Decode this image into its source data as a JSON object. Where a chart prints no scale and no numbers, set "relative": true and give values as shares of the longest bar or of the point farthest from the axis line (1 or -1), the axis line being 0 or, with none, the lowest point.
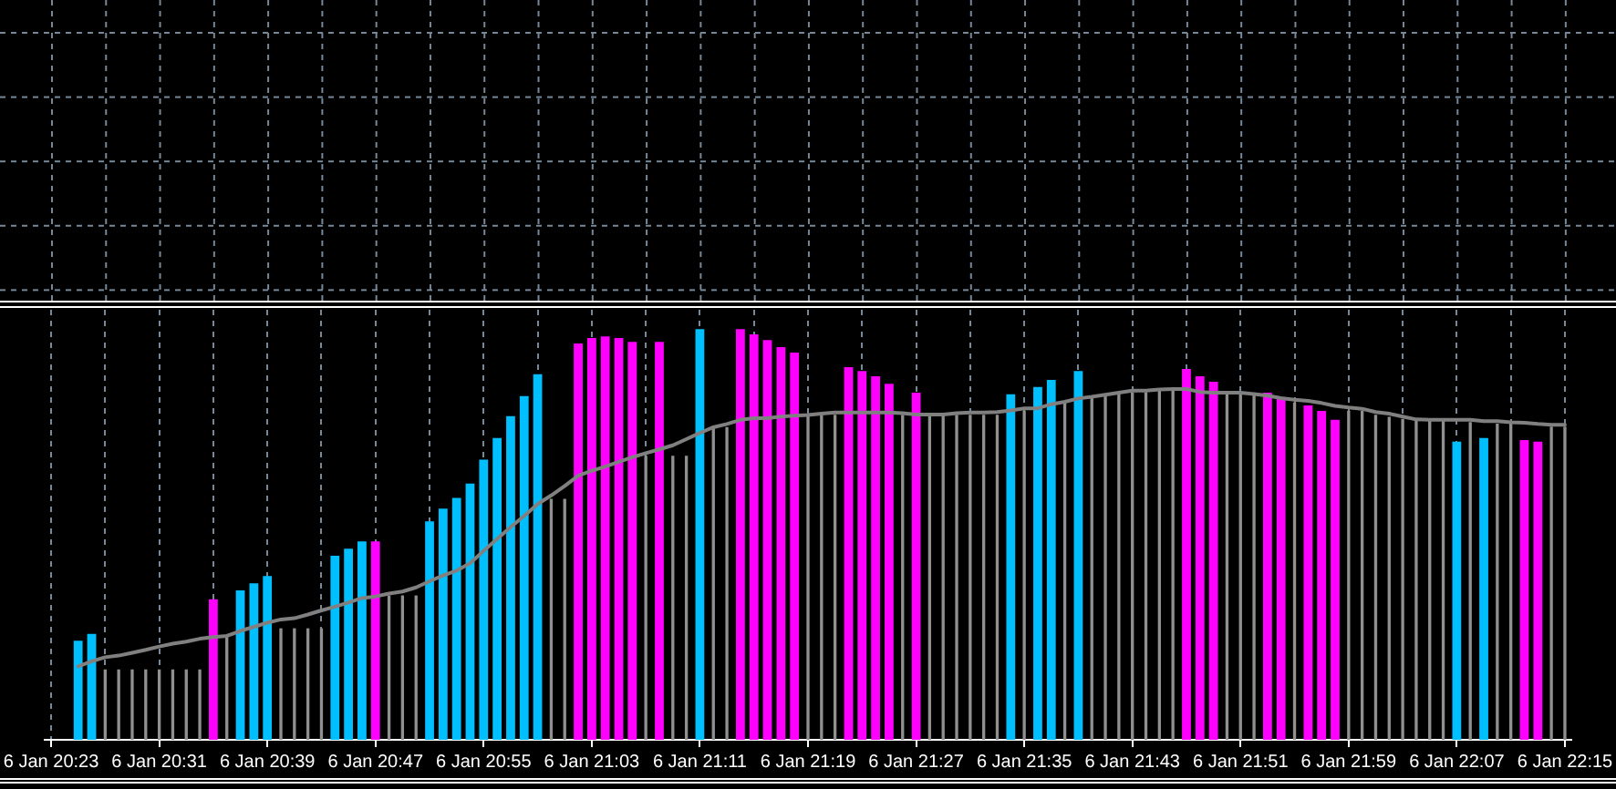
{
  "chart_data": {
    "type": "bar",
    "relative": true,
    "grid": "x",
    "categories": [
      "6 Jan 20:23",
      null,
      null,
      null,
      null,
      null,
      null,
      null,
      "6 Jan 20:31",
      null,
      null,
      null,
      null,
      null,
      null,
      null,
      "6 Jan 20:39",
      null,
      null,
      null,
      null,
      null,
      null,
      null,
      "6 Jan 20:47",
      null,
      null,
      null,
      null,
      null,
      null,
      null,
      "6 Jan 20:55",
      null,
      null,
      null,
      null,
      null,
      null,
      null,
      "6 Jan 21:03",
      null,
      null,
      null,
      null,
      null,
      null,
      null,
      "6 Jan 21:11",
      null,
      null,
      null,
      null,
      null,
      null,
      null,
      "6 Jan 21:19",
      null,
      null,
      null,
      null,
      null,
      null,
      null,
      "6 Jan 21:27",
      null,
      null,
      null,
      null,
      null,
      null,
      null,
      "6 Jan 21:35",
      null,
      null,
      null,
      null,
      null,
      null,
      null,
      "6 Jan 21:43",
      null,
      null,
      null,
      null,
      null,
      null,
      null,
      "6 Jan 21:51",
      null,
      null,
      null,
      null,
      null,
      null,
      null,
      "6 Jan 21:59",
      null,
      null,
      null,
      null,
      null,
      null,
      null,
      "6 Jan 22:07",
      null,
      null,
      null,
      null,
      null,
      null,
      null,
      "6 Jan 22:15"
    ],
    "series": [
      {
        "color": "#00bfff",
        "values": [
          null,
          null,
          0.241,
          0.258,
          null,
          null,
          null,
          null,
          null,
          null,
          null,
          null,
          null,
          null,
          0.364,
          0.381,
          0.399,
          null,
          null,
          null,
          null,
          0.448,
          0.465,
          0.483,
          null,
          null,
          null,
          null,
          0.532,
          0.563,
          0.589,
          0.624,
          0.682,
          0.735,
          0.788,
          0.837,
          0.89,
          null,
          null,
          null,
          null,
          null,
          null,
          null,
          null,
          null,
          null,
          null,
          1,
          null,
          null,
          null,
          null,
          null,
          null,
          null,
          null,
          null,
          null,
          null,
          null,
          null,
          null,
          null,
          null,
          null,
          null,
          null,
          null,
          null,
          null,
          0.841,
          null,
          0.859,
          0.876,
          null,
          0.898,
          null,
          null,
          null,
          null,
          null,
          null,
          null,
          null,
          null,
          null,
          null,
          null,
          null,
          null,
          null,
          null,
          null,
          null,
          null,
          null,
          null,
          null,
          null,
          null,
          null,
          null,
          null,
          0.726,
          null,
          0.735,
          null,
          null,
          null,
          null,
          null,
          null
        ]
      },
      {
        "color": "#ff00ff",
        "values": [
          null,
          null,
          null,
          null,
          null,
          null,
          null,
          null,
          null,
          null,
          null,
          null,
          0.342,
          null,
          null,
          null,
          null,
          null,
          null,
          null,
          null,
          null,
          null,
          null,
          0.483,
          null,
          null,
          null,
          null,
          null,
          null,
          null,
          null,
          null,
          null,
          null,
          null,
          null,
          null,
          0.965,
          0.978,
          0.982,
          0.978,
          0.969,
          null,
          0.969,
          null,
          null,
          null,
          null,
          null,
          1,
          0.987,
          0.973,
          0.956,
          0.943,
          null,
          null,
          null,
          0.907,
          0.898,
          0.885,
          0.867,
          null,
          0.845,
          null,
          null,
          null,
          null,
          null,
          null,
          null,
          null,
          null,
          null,
          null,
          null,
          null,
          null,
          null,
          null,
          null,
          null,
          null,
          0.903,
          0.885,
          0.872,
          null,
          null,
          null,
          0.845,
          0.832,
          null,
          0.814,
          0.801,
          0.779,
          null,
          null,
          null,
          null,
          null,
          null,
          null,
          null,
          null,
          null,
          null,
          null,
          null,
          0.73,
          0.726,
          null,
          null
        ]
      },
      {
        "color": "#909090",
        "values": [
          null,
          null,
          null,
          null,
          0.17,
          0.17,
          0.17,
          0.17,
          0.17,
          0.17,
          0.17,
          0.17,
          null,
          0.25,
          null,
          null,
          null,
          0.27,
          0.27,
          0.27,
          0.27,
          null,
          null,
          null,
          null,
          0.35,
          0.35,
          0.35,
          null,
          null,
          null,
          null,
          null,
          null,
          null,
          null,
          null,
          0.585,
          0.585,
          null,
          null,
          null,
          null,
          null,
          0.69,
          null,
          0.69,
          0.69,
          null,
          0.76,
          0.76,
          null,
          null,
          null,
          null,
          null,
          0.79,
          0.79,
          0.79,
          null,
          null,
          null,
          null,
          0.79,
          null,
          0.79,
          0.79,
          0.79,
          0.79,
          0.79,
          0.79,
          null,
          0.8,
          null,
          null,
          0.82,
          null,
          0.835,
          0.84,
          0.845,
          0.845,
          0.845,
          0.85,
          0.85,
          null,
          null,
          null,
          0.845,
          0.845,
          0.84,
          null,
          null,
          0.82,
          null,
          null,
          null,
          0.8,
          0.8,
          0.79,
          0.785,
          0.78,
          0.776,
          0.776,
          0.776,
          null,
          0.772,
          null,
          0.768,
          0.768,
          null,
          null,
          0.761,
          0.761
        ]
      },
      {
        "type": "line",
        "color": "#808080",
        "values": [
          null,
          null,
          0.179,
          0.191,
          0.201,
          0.205,
          0.212,
          0.219,
          0.227,
          0.234,
          0.239,
          0.246,
          0.25,
          0.253,
          0.265,
          0.275,
          0.285,
          0.293,
          0.296,
          0.305,
          0.315,
          0.324,
          0.334,
          0.345,
          0.349,
          0.356,
          0.361,
          0.371,
          0.386,
          0.4,
          0.412,
          0.43,
          0.46,
          0.489,
          0.518,
          0.545,
          0.574,
          0.595,
          0.618,
          0.643,
          0.655,
          0.665,
          0.677,
          0.688,
          0.698,
          0.707,
          0.717,
          0.732,
          0.747,
          0.761,
          0.769,
          0.779,
          0.783,
          0.783,
          0.787,
          0.789,
          0.791,
          0.794,
          0.797,
          0.797,
          0.797,
          0.797,
          0.797,
          0.795,
          0.792,
          0.792,
          0.792,
          0.795,
          0.797,
          0.797,
          0.798,
          0.802,
          0.807,
          0.807,
          0.817,
          0.823,
          0.831,
          0.835,
          0.84,
          0.845,
          0.85,
          0.85,
          0.853,
          0.854,
          0.854,
          0.847,
          0.845,
          0.845,
          0.845,
          0.842,
          0.838,
          0.832,
          0.828,
          0.825,
          0.82,
          0.813,
          0.809,
          0.806,
          0.798,
          0.794,
          0.787,
          0.78,
          0.779,
          0.779,
          0.779,
          0.779,
          0.776,
          0.776,
          0.773,
          0.772,
          0.769,
          0.767,
          0.767
        ]
      }
    ]
  }
}
